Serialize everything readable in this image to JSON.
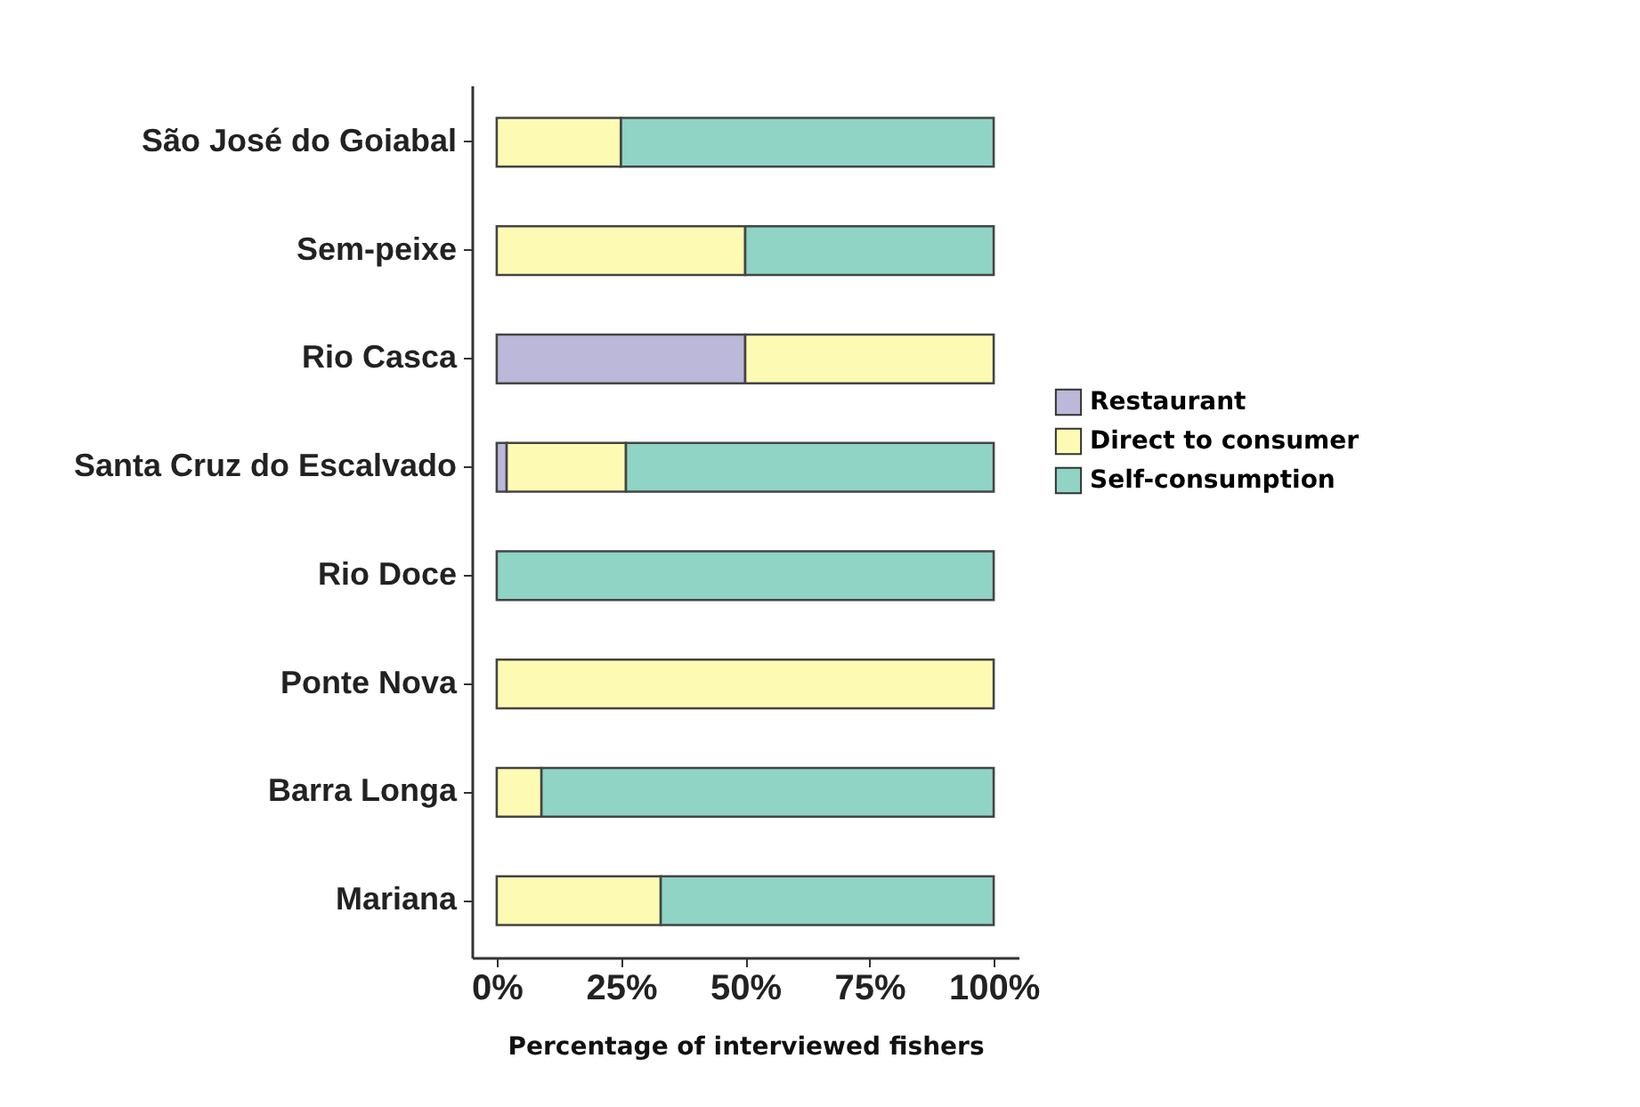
{
  "chart_data": {
    "type": "bar",
    "orientation": "horizontal",
    "stacked": true,
    "xlabel": "Percentage of interviewed fishers",
    "categories": [
      "São José do Goiabal",
      "Sem-peixe",
      "Rio Casca",
      "Santa Cruz do Escalvado",
      "Rio Doce",
      "Ponte Nova",
      "Barra Longa",
      "Mariana"
    ],
    "series": [
      {
        "name": "Restaurant",
        "color": "#bcb8d9",
        "values": [
          0,
          0,
          50,
          2,
          0,
          0,
          0,
          0
        ]
      },
      {
        "name": "Direct to consumer",
        "color": "#fdfbb3",
        "values": [
          25,
          50,
          50,
          24,
          0,
          100,
          9,
          33
        ]
      },
      {
        "name": "Self-consumption",
        "color": "#8fd4c5",
        "values": [
          75,
          50,
          0,
          74,
          100,
          0,
          91,
          67
        ]
      }
    ],
    "xlim": [
      -5,
      105
    ],
    "xticks": [
      {
        "value": 0,
        "label": "0%"
      },
      {
        "value": 25,
        "label": "25%"
      },
      {
        "value": 50,
        "label": "50%"
      },
      {
        "value": 75,
        "label": "75%"
      },
      {
        "value": 100,
        "label": "100%"
      }
    ],
    "grid": false,
    "legend": "right"
  }
}
